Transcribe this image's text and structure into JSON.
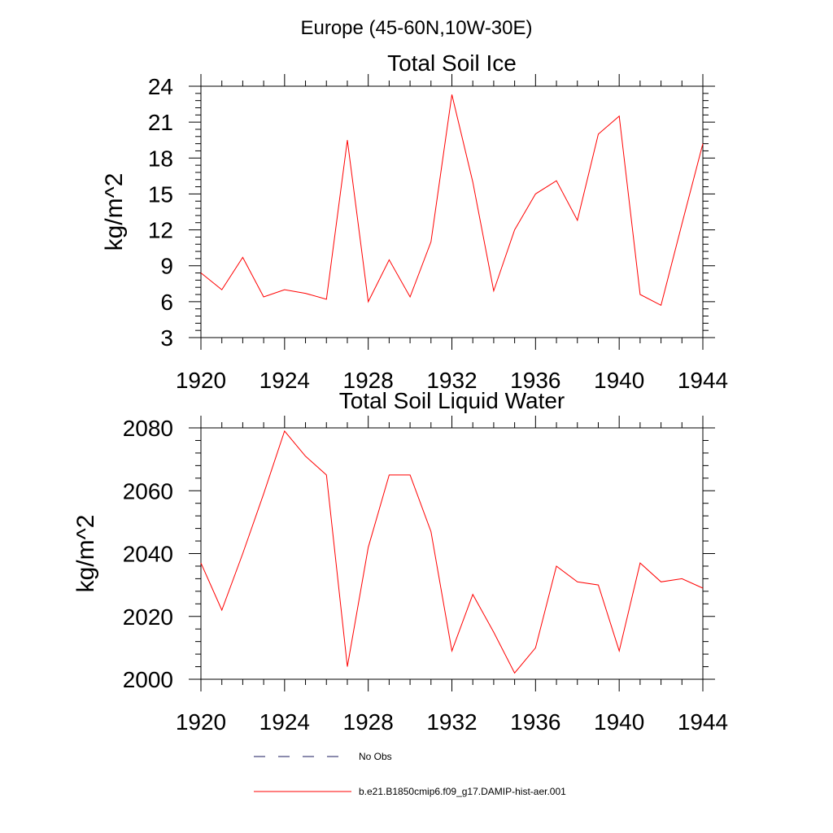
{
  "figure": {
    "suptitle": "Europe (45-60N,10W-30E)"
  },
  "chart_data": [
    {
      "type": "line",
      "title": "Total Soil Ice",
      "xlabel": "",
      "ylabel": "kg/m^2",
      "xlim": [
        1920,
        1944
      ],
      "ylim": [
        3,
        24
      ],
      "xticks": [
        1920,
        1924,
        1928,
        1932,
        1936,
        1940,
        1944
      ],
      "yticks": [
        3,
        6,
        9,
        12,
        15,
        18,
        21,
        24
      ],
      "x": [
        1920,
        1921,
        1922,
        1923,
        1924,
        1925,
        1926,
        1927,
        1928,
        1929,
        1930,
        1931,
        1932,
        1933,
        1934,
        1935,
        1936,
        1937,
        1938,
        1939,
        1940,
        1941,
        1942,
        1943,
        1944
      ],
      "series": [
        {
          "name": "b.e21.B1850cmip6.f09_g17.DAMIP-hist-aer.001",
          "color": "#ff0000",
          "values": [
            8.4,
            7.0,
            9.7,
            6.4,
            7.0,
            6.7,
            6.2,
            19.5,
            6.0,
            9.5,
            6.4,
            11.0,
            23.3,
            16.0,
            6.9,
            12.0,
            15.0,
            16.1,
            12.8,
            20.0,
            21.5,
            6.6,
            5.7,
            12.5,
            19.2
          ]
        }
      ]
    },
    {
      "type": "line",
      "title": "Total Soil Liquid Water",
      "xlabel": "",
      "ylabel": "kg/m^2",
      "xlim": [
        1920,
        1944
      ],
      "ylim": [
        2000,
        2080
      ],
      "xticks": [
        1920,
        1924,
        1928,
        1932,
        1936,
        1940,
        1944
      ],
      "yticks": [
        2000,
        2020,
        2040,
        2060,
        2080
      ],
      "x": [
        1920,
        1921,
        1922,
        1923,
        1924,
        1925,
        1926,
        1927,
        1928,
        1929,
        1930,
        1931,
        1932,
        1933,
        1934,
        1935,
        1936,
        1937,
        1938,
        1939,
        1940,
        1941,
        1942,
        1943,
        1944
      ],
      "series": [
        {
          "name": "b.e21.B1850cmip6.f09_g17.DAMIP-hist-aer.001",
          "color": "#ff0000",
          "values": [
            2037,
            2022,
            2040,
            2059,
            2079,
            2071,
            2065,
            2004,
            2042,
            2065,
            2065,
            2047,
            2009,
            2027,
            2015,
            2002,
            2010,
            2036,
            2031,
            2030,
            2009,
            2037,
            2031,
            2032,
            2029
          ]
        }
      ]
    }
  ],
  "legend": {
    "items": [
      {
        "label": "No Obs",
        "style": "dashed",
        "color": "#1a1a5c"
      },
      {
        "label": "b.e21.B1850cmip6.f09_g17.DAMIP-hist-aer.001",
        "style": "solid",
        "color": "#ff0000"
      }
    ]
  }
}
